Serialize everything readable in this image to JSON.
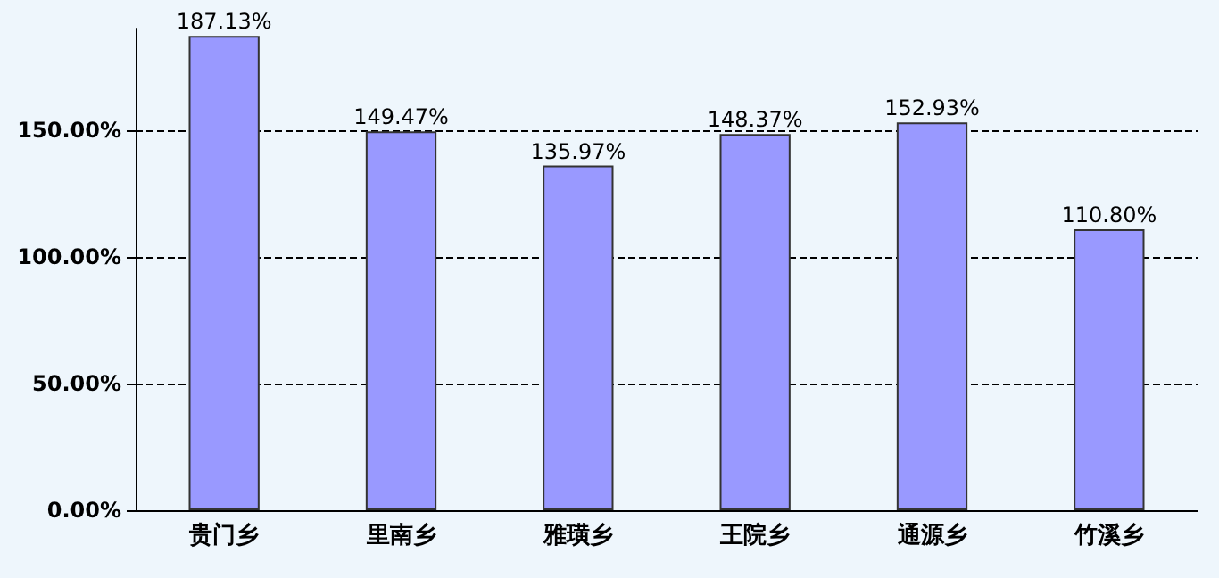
{
  "chart_data": {
    "type": "bar",
    "categories": [
      "贵门乡",
      "里南乡",
      "雅璜乡",
      "王院乡",
      "通源乡",
      "竹溪乡"
    ],
    "values": [
      187.13,
      149.47,
      135.97,
      148.37,
      152.93,
      110.8
    ],
    "value_labels": [
      "187.13%",
      "149.47%",
      "135.97%",
      "148.37%",
      "152.93%",
      "110.80%"
    ],
    "color": "#9999ff",
    "ylim": [
      0,
      190
    ],
    "yticks": [
      {
        "value": 0,
        "label": "0.00%"
      },
      {
        "value": 50,
        "label": "50.00%"
      },
      {
        "value": 100,
        "label": "100.00%"
      },
      {
        "value": 150,
        "label": "150.00%"
      }
    ],
    "grid": "y"
  }
}
